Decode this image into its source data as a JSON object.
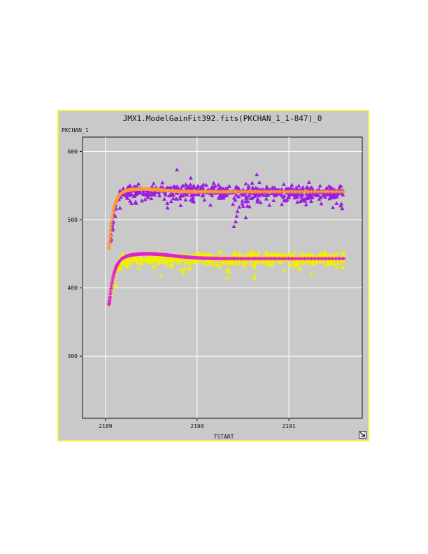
{
  "window": {
    "frame_color": "#f2f230",
    "background": "#c9c9c9"
  },
  "chart_data": {
    "type": "scatter",
    "title": "JMX1.ModelGainFit392.fits(PKCHAN_1_1-847)_0",
    "xlabel": "TSTART",
    "ylabel": "PKCHAN_1",
    "xlim": [
      2188.75,
      2191.8
    ],
    "ylim": [
      209,
      621
    ],
    "xticks": [
      2189,
      2190,
      2191
    ],
    "yticks": [
      300,
      400,
      500,
      600
    ],
    "grid": true,
    "legend": "none",
    "series": [
      {
        "marker": "triangle",
        "color": "#9b1de0",
        "x_range": [
          2189.05,
          2191.6
        ],
        "model": {
          "baseline": 541,
          "amplitude": 80,
          "tau": 0.045,
          "t0": 2189.05
        },
        "scatter": 9,
        "points": 650,
        "outliers": [
          [
            2189.78,
            573
          ],
          [
            2190.65,
            566
          ],
          [
            2189.93,
            561
          ],
          [
            2190.42,
            497
          ],
          [
            2190.43,
            505
          ],
          [
            2190.44,
            512
          ],
          [
            2190.4,
            490
          ],
          [
            2190.53,
            503
          ],
          [
            2190.57,
            519
          ]
        ]
      },
      {
        "marker": "plus",
        "color": "#ff9933",
        "role": "fit",
        "x_range": [
          2189.04,
          2191.6
        ],
        "model": {
          "baseline": 541,
          "amplitude": 84,
          "tau": 0.045,
          "t0": 2189.04
        },
        "fit_bump": {
          "center": 2189.4,
          "width": 0.28,
          "height": 4
        },
        "points": 260
      },
      {
        "marker": "triangle",
        "color": "#f2f000",
        "x_range": [
          2189.05,
          2191.6
        ],
        "model": {
          "baseline": 443,
          "amplitude": 60,
          "tau": 0.05,
          "t0": 2189.05
        },
        "scatter": 7,
        "points": 650,
        "outliers": [
          [
            2189.6,
            418
          ],
          [
            2189.85,
            421
          ],
          [
            2190.33,
            415
          ],
          [
            2190.35,
            424
          ],
          [
            2190.62,
            419
          ],
          [
            2190.63,
            414
          ],
          [
            2190.95,
            425
          ],
          [
            2191.52,
            430
          ]
        ]
      },
      {
        "marker": "plus",
        "color": "#e020d0",
        "role": "fit",
        "x_range": [
          2189.04,
          2191.6
        ],
        "model": {
          "baseline": 443,
          "amplitude": 70,
          "tau": 0.052,
          "t0": 2189.04
        },
        "fit_bump": {
          "center": 2189.45,
          "width": 0.4,
          "height": 7
        },
        "points": 260
      }
    ]
  }
}
